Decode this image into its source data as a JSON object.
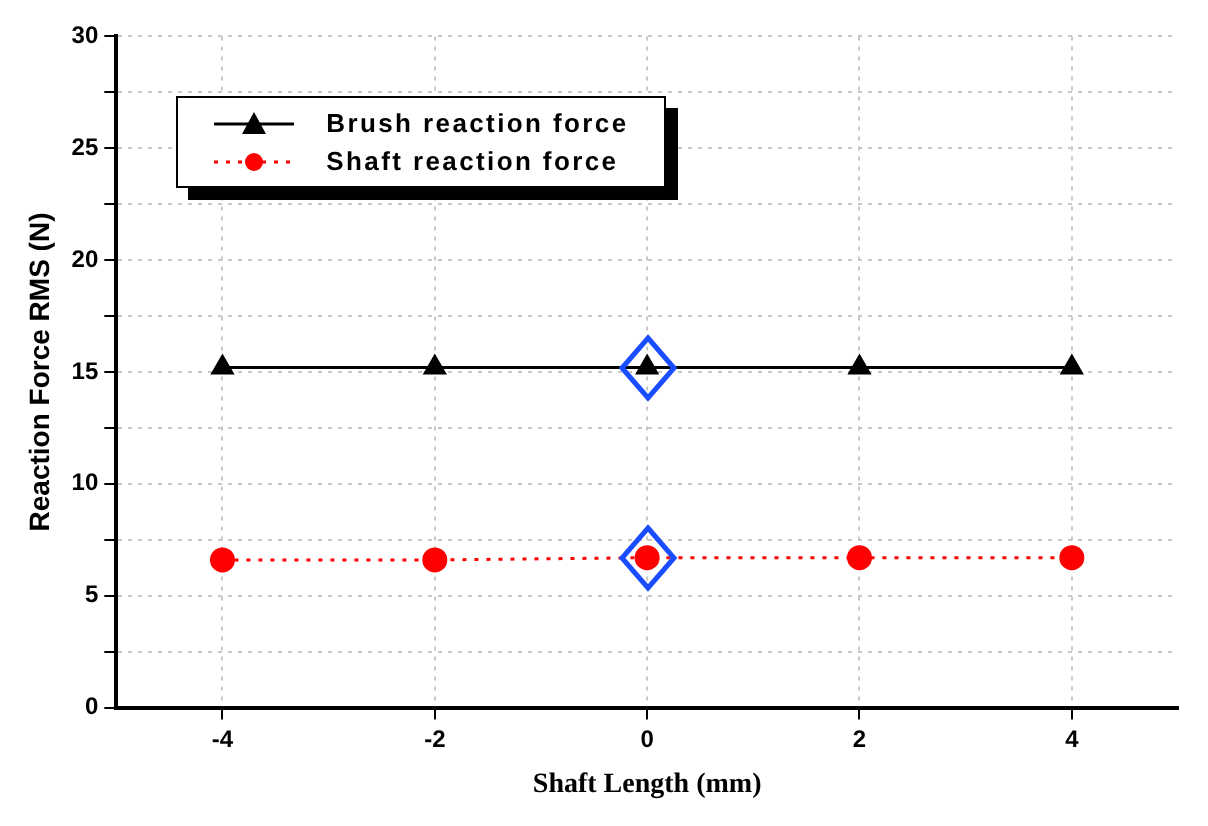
{
  "chart_data": {
    "type": "line",
    "xlabel": "Shaft Length (mm)",
    "ylabel": "Reaction Force RMS (N)",
    "x": [
      -4,
      -2,
      0,
      2,
      4
    ],
    "series": [
      {
        "name": "Brush reaction force",
        "color": "#000000",
        "values": [
          15.2,
          15.2,
          15.2,
          15.2,
          15.2
        ],
        "marker": "triangle",
        "line_style": "solid"
      },
      {
        "name": "Shaft reaction force",
        "color": "#ff0000",
        "values": [
          6.6,
          6.6,
          6.7,
          6.7,
          6.7
        ],
        "marker": "circle",
        "line_style": "dotted"
      }
    ],
    "xlim": [
      -5,
      5
    ],
    "xticks": [
      -4,
      -2,
      0,
      2,
      4
    ],
    "ylim": [
      0,
      30
    ],
    "yticks": [
      0,
      {
        "value": 2.5,
        "label": null
      },
      5,
      {
        "value": 7.5,
        "label": null
      },
      10,
      {
        "value": 12.5,
        "label": null
      },
      15,
      {
        "value": 17.5,
        "label": null
      },
      20,
      {
        "value": 22.5,
        "label": null
      },
      25,
      {
        "value": 27.5,
        "label": null
      },
      30
    ],
    "grid": true,
    "legend": "top left"
  }
}
